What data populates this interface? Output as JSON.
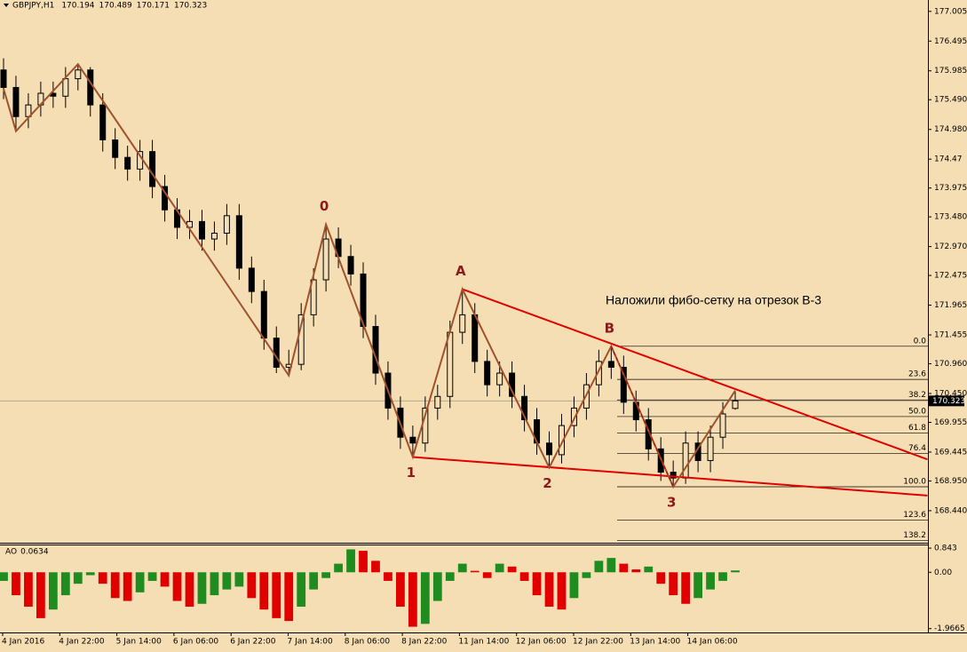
{
  "chart_data": [
    {
      "type": "candlestick",
      "title": "GBPJPY,H1",
      "annotation": "Наложили фибо-сетку на отрезок B-3",
      "open": [
        176.0,
        175.7,
        175.2,
        175.4,
        175.6,
        175.55,
        175.85,
        176.0,
        175.4,
        174.8,
        174.5,
        174.3,
        174.6,
        174.0,
        173.6,
        173.3,
        173.4,
        173.1,
        173.2,
        173.5,
        172.6,
        172.2,
        171.4,
        170.9,
        170.95,
        171.8,
        172.4,
        173.1,
        172.8,
        172.5,
        171.6,
        170.8,
        170.2,
        169.7,
        169.6,
        170.2,
        170.4,
        171.5,
        171.8,
        171.0,
        170.6,
        170.8,
        170.4,
        170.0,
        169.6,
        169.4,
        169.9,
        170.2,
        170.6,
        171.0,
        170.9,
        170.3,
        170.0,
        169.5,
        169.1,
        169.0,
        169.6,
        169.3,
        169.7,
        170.194
      ],
      "high": [
        176.2,
        175.9,
        175.6,
        175.8,
        175.8,
        176.05,
        176.1,
        176.05,
        175.6,
        175.0,
        174.7,
        174.8,
        174.8,
        174.2,
        173.8,
        173.6,
        173.6,
        173.4,
        173.7,
        173.7,
        172.8,
        172.4,
        171.6,
        171.2,
        172.0,
        172.6,
        173.35,
        173.3,
        173.0,
        172.7,
        171.8,
        171.0,
        170.4,
        169.9,
        170.4,
        170.6,
        171.7,
        172.24,
        172.0,
        171.2,
        171.0,
        171.0,
        170.6,
        170.2,
        169.8,
        170.1,
        170.4,
        170.8,
        171.2,
        171.26,
        171.1,
        170.5,
        170.2,
        169.7,
        169.3,
        169.8,
        169.8,
        169.9,
        170.3,
        170.489
      ],
      "low": [
        175.5,
        174.95,
        175.0,
        175.2,
        175.35,
        175.35,
        175.65,
        175.2,
        174.6,
        174.3,
        174.1,
        174.1,
        173.8,
        173.4,
        173.1,
        173.1,
        172.9,
        172.9,
        173.0,
        172.4,
        172.0,
        171.2,
        170.8,
        170.76,
        170.85,
        171.6,
        172.2,
        172.6,
        172.3,
        171.4,
        170.6,
        170.0,
        169.5,
        169.36,
        169.45,
        170.0,
        170.2,
        171.3,
        170.8,
        170.4,
        170.4,
        170.2,
        169.8,
        169.4,
        169.18,
        169.25,
        169.7,
        170.0,
        170.4,
        170.7,
        170.1,
        169.8,
        169.3,
        168.95,
        168.85,
        168.9,
        169.1,
        169.1,
        169.5,
        170.171
      ],
      "close": [
        175.7,
        175.2,
        175.4,
        175.6,
        175.55,
        175.85,
        176.0,
        175.4,
        174.8,
        174.5,
        174.3,
        174.6,
        174.0,
        173.6,
        173.3,
        173.4,
        173.1,
        173.2,
        173.5,
        172.6,
        172.2,
        171.4,
        170.9,
        170.95,
        171.8,
        172.4,
        173.1,
        172.8,
        172.5,
        171.6,
        170.8,
        170.2,
        169.7,
        169.6,
        170.2,
        170.4,
        171.5,
        171.8,
        171.0,
        170.6,
        170.8,
        170.4,
        170.0,
        169.6,
        169.4,
        169.9,
        170.2,
        170.6,
        171.0,
        170.9,
        170.3,
        170.0,
        169.5,
        169.1,
        169.0,
        169.6,
        169.3,
        169.7,
        170.1,
        170.323
      ],
      "ylim": [
        167.89,
        177.2
      ],
      "yticks": [
        177.005,
        176.495,
        175.985,
        {
          "value": 175.49,
          "label": "175.490"
        },
        {
          "value": 174.98,
          "label": "174.980"
        },
        174.47,
        173.975,
        {
          "value": 173.48,
          "label": "173.480"
        },
        {
          "value": 172.97,
          "label": "172.970"
        },
        172.475,
        171.965,
        171.455,
        {
          "value": 170.96,
          "label": "170.960"
        },
        {
          "value": 170.45,
          "label": "170.450"
        },
        169.955,
        169.445,
        {
          "value": 168.95,
          "label": "168.950"
        },
        {
          "value": 168.44,
          "label": "168.440"
        }
      ],
      "time_labels": [
        "4 Jan 2016",
        "4 Jan 22:00",
        "5 Jan 14:00",
        "6 Jan 06:00",
        "6 Jan 22:00",
        "7 Jan 14:00",
        "8 Jan 06:00",
        "8 Jan 22:00",
        "11 Jan 14:00",
        "12 Jan 06:00",
        "12 Jan 22:00",
        "13 Jan 14:00",
        "14 Jan 06:00"
      ],
      "zigzag": {
        "color": "#a0522d",
        "x": [
          0,
          1,
          6,
          23,
          26,
          33,
          37,
          44,
          49,
          54,
          59
        ],
        "values": [
          175.68,
          174.95,
          176.1,
          170.76,
          173.35,
          169.36,
          172.24,
          169.18,
          171.26,
          168.85,
          170.5
        ],
        "labels": [
          null,
          null,
          null,
          null,
          "0",
          "1",
          "A",
          "2",
          "B",
          "3",
          null
        ]
      },
      "trend_lines": {
        "color": "#e00000",
        "lines": [
          {
            "x": [
              37,
              74.5
            ],
            "values": [
              172.24,
              169.32
            ]
          },
          {
            "x": [
              33,
              74.5
            ],
            "values": [
              169.36,
              168.7
            ]
          }
        ]
      },
      "fibo": {
        "high": 171.26,
        "low": 168.85,
        "levels": [
          {
            "value": 0,
            "label": "0.0"
          },
          23.6,
          38.2,
          {
            "value": 50,
            "label": "50.0"
          },
          61.8,
          76.4,
          {
            "value": 100,
            "label": "100.0"
          },
          123.6,
          138.2
        ]
      }
    },
    {
      "type": "bar",
      "title": "AO",
      "up_color": "#1e8c1e",
      "down_color": "#e00000",
      "values": [
        -0.3,
        -0.8,
        -1.2,
        -1.6,
        -1.3,
        -0.8,
        -0.4,
        -0.1,
        -0.4,
        -0.9,
        -1.0,
        -0.7,
        -0.3,
        -0.5,
        -1.0,
        -1.2,
        -1.1,
        -0.8,
        -0.6,
        -0.5,
        -0.9,
        -1.3,
        -1.6,
        -1.7,
        -1.2,
        -0.6,
        -0.2,
        0.3,
        0.8,
        0.75,
        0.4,
        -0.3,
        -1.2,
        -1.9,
        -1.8,
        -1.0,
        -0.3,
        0.3,
        0.05,
        -0.2,
        0.3,
        0.2,
        -0.3,
        -0.8,
        -1.2,
        -1.3,
        -0.9,
        -0.2,
        0.4,
        0.5,
        0.3,
        0.1,
        0.2,
        -0.4,
        -0.8,
        -1.1,
        -0.9,
        -0.6,
        -0.3,
        0.0634
      ],
      "ylim": [
        -2.1,
        1.0
      ],
      "yticks": [
        0.843,
        {
          "value": 0,
          "label": "0.00"
        },
        -1.9665
      ]
    }
  ]
}
